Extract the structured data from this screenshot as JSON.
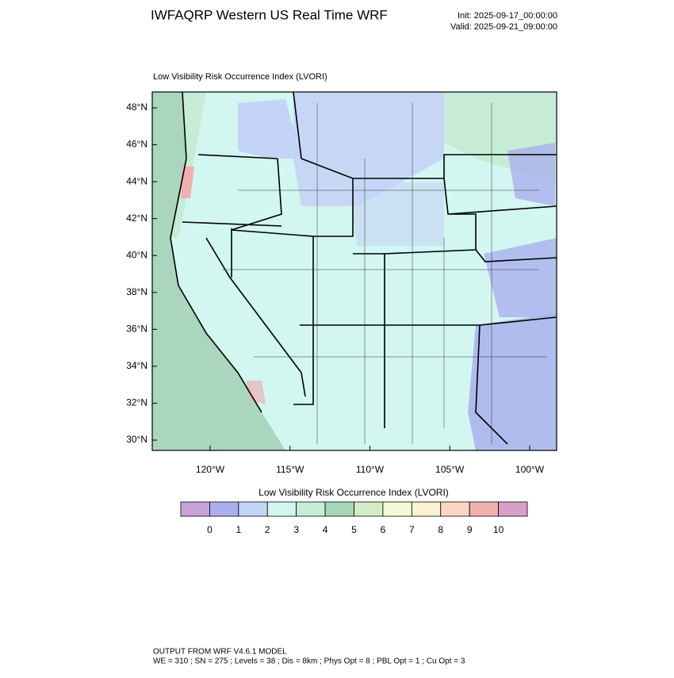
{
  "header": {
    "title": "IWFAQRP Western US Real Time WRF",
    "init": "Init: 2025-09-17_00:00:00",
    "valid": "Valid: 2025-09-21_09:00:00"
  },
  "map": {
    "title": "Low Visibility Risk Occurrence Index  (LVORI)",
    "lat_labels": [
      "30°N",
      "32°N",
      "34°N",
      "36°N",
      "38°N",
      "40°N",
      "42°N",
      "44°N",
      "46°N",
      "48°N"
    ],
    "lon_labels": [
      "120°W",
      "115°W",
      "110°W",
      "105°W",
      "100°W"
    ]
  },
  "colorbar": {
    "title": "Low Visibility Risk Occurrence Index  (LVORI)",
    "colors": [
      "#c8a2d8",
      "#aab0ec",
      "#c4d4f6",
      "#d2f6f0",
      "#c6ecd6",
      "#a6d6b8",
      "#d2ecc4",
      "#f4fad8",
      "#fdf2d4",
      "#fcd6c4",
      "#f0b0b0",
      "#d8a0c8"
    ],
    "labels": [
      "0",
      "1",
      "2",
      "3",
      "4",
      "5",
      "6",
      "7",
      "8",
      "9",
      "10"
    ]
  },
  "footer": {
    "line1": "OUTPUT FROM WRF V4.6.1 MODEL",
    "line2": "WE = 310 ; SN = 275 ; Levels = 38 ; Dis = 8km ; Phys Opt = 8 ; PBL Opt = 1 ; Cu Opt = 3"
  }
}
